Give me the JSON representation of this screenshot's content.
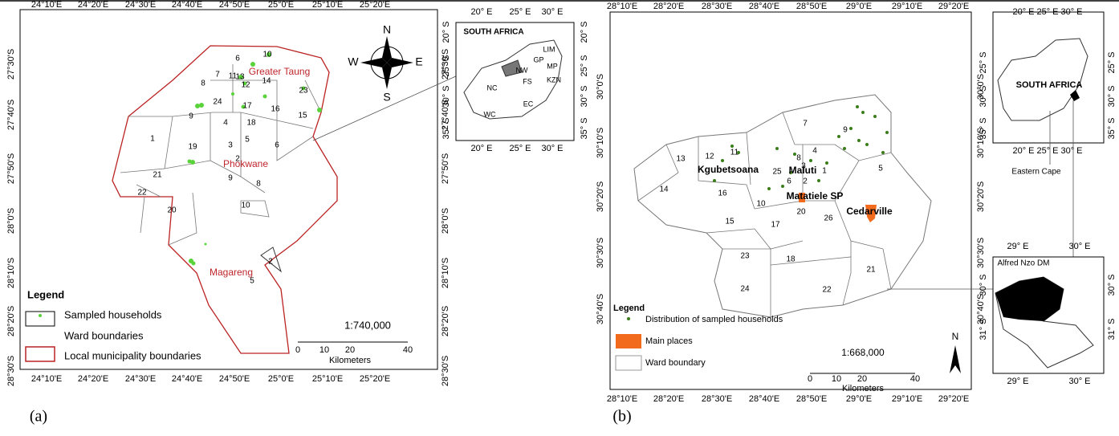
{
  "panel_a": {
    "caption": "(a)",
    "lon_ticks": [
      "24°10'E",
      "24°20'E",
      "24°30'E",
      "24°40'E",
      "24°50'E",
      "25°0'E",
      "25°10'E",
      "25°20'E"
    ],
    "lat_ticks": [
      "27°30'S",
      "27°40'S",
      "27°50'S",
      "28°0'S",
      "28°10'S",
      "28°20'S",
      "28°30'S"
    ],
    "places": [
      "Greater Taung",
      "Phokwane",
      "Magareng"
    ],
    "wards": [
      "6",
      "10",
      "7",
      "11",
      "13",
      "12",
      "14",
      "8",
      "23",
      "24",
      "17",
      "16",
      "15",
      "9",
      "4",
      "18",
      "6",
      "5",
      "1",
      "19",
      "3",
      "2",
      "21",
      "9",
      "8",
      "22",
      "20",
      "10",
      "2",
      "5"
    ],
    "compass": [
      "N",
      "E",
      "S",
      "W"
    ],
    "scale": "1:740,000",
    "scale_ticks": [
      "0",
      "10",
      "20",
      "40"
    ],
    "scale_unit": "Kilometers",
    "legend_title": "Legend",
    "legend_items": [
      "Sampled households",
      "Ward boundaries",
      "Local municipality boundaries"
    ],
    "inset": {
      "title": "SOUTH AFRICA",
      "lon_ticks": [
        "20° E",
        "25° E",
        "30° E"
      ],
      "lat_ticks": [
        "20° S",
        "25° S",
        "30° S",
        "35° S"
      ],
      "provinces": [
        "LIM",
        "GP",
        "MP",
        "NW",
        "FS",
        "KZN",
        "NC",
        "EC",
        "WC"
      ]
    }
  },
  "panel_b": {
    "caption": "(b)",
    "lon_ticks": [
      "28°10'E",
      "28°20'E",
      "28°30'E",
      "28°40'E",
      "28°50'E",
      "29°0'E",
      "29°10'E",
      "29°20'E"
    ],
    "lat_ticks": [
      "30°0'S",
      "30°10'S",
      "30°20'S",
      "30°30'S",
      "30°40'S"
    ],
    "places": [
      "Kgubetsoana",
      "Maluti",
      "Matatiele SP",
      "Cedarville"
    ],
    "wards": [
      "7",
      "9",
      "13",
      "12",
      "11",
      "8",
      "4",
      "3",
      "25",
      "6",
      "2",
      "1",
      "5",
      "14",
      "16",
      "10",
      "20",
      "26",
      "15",
      "17",
      "23",
      "18",
      "24",
      "22",
      "21"
    ],
    "north": "N",
    "scale": "1:668,000",
    "scale_ticks": [
      "0",
      "10",
      "20",
      "40"
    ],
    "scale_unit": "Kilometers",
    "legend_title": "Legend",
    "legend_items": [
      "Distribution of sampled households",
      "Main places",
      "Ward boundary"
    ],
    "inset_sa": {
      "title": "SOUTH AFRICA",
      "lon_ticks": [
        "20° E",
        "25° E",
        "30° E"
      ],
      "lat_ticks": [
        "25° S",
        "30° S",
        "35° S"
      ],
      "region": "Eastern Cape"
    },
    "inset_district": {
      "title": "Alfred Nzo DM",
      "lon_ticks": [
        "29° E",
        "30° E"
      ],
      "lat_ticks": [
        "30° S",
        "31° S"
      ]
    }
  }
}
